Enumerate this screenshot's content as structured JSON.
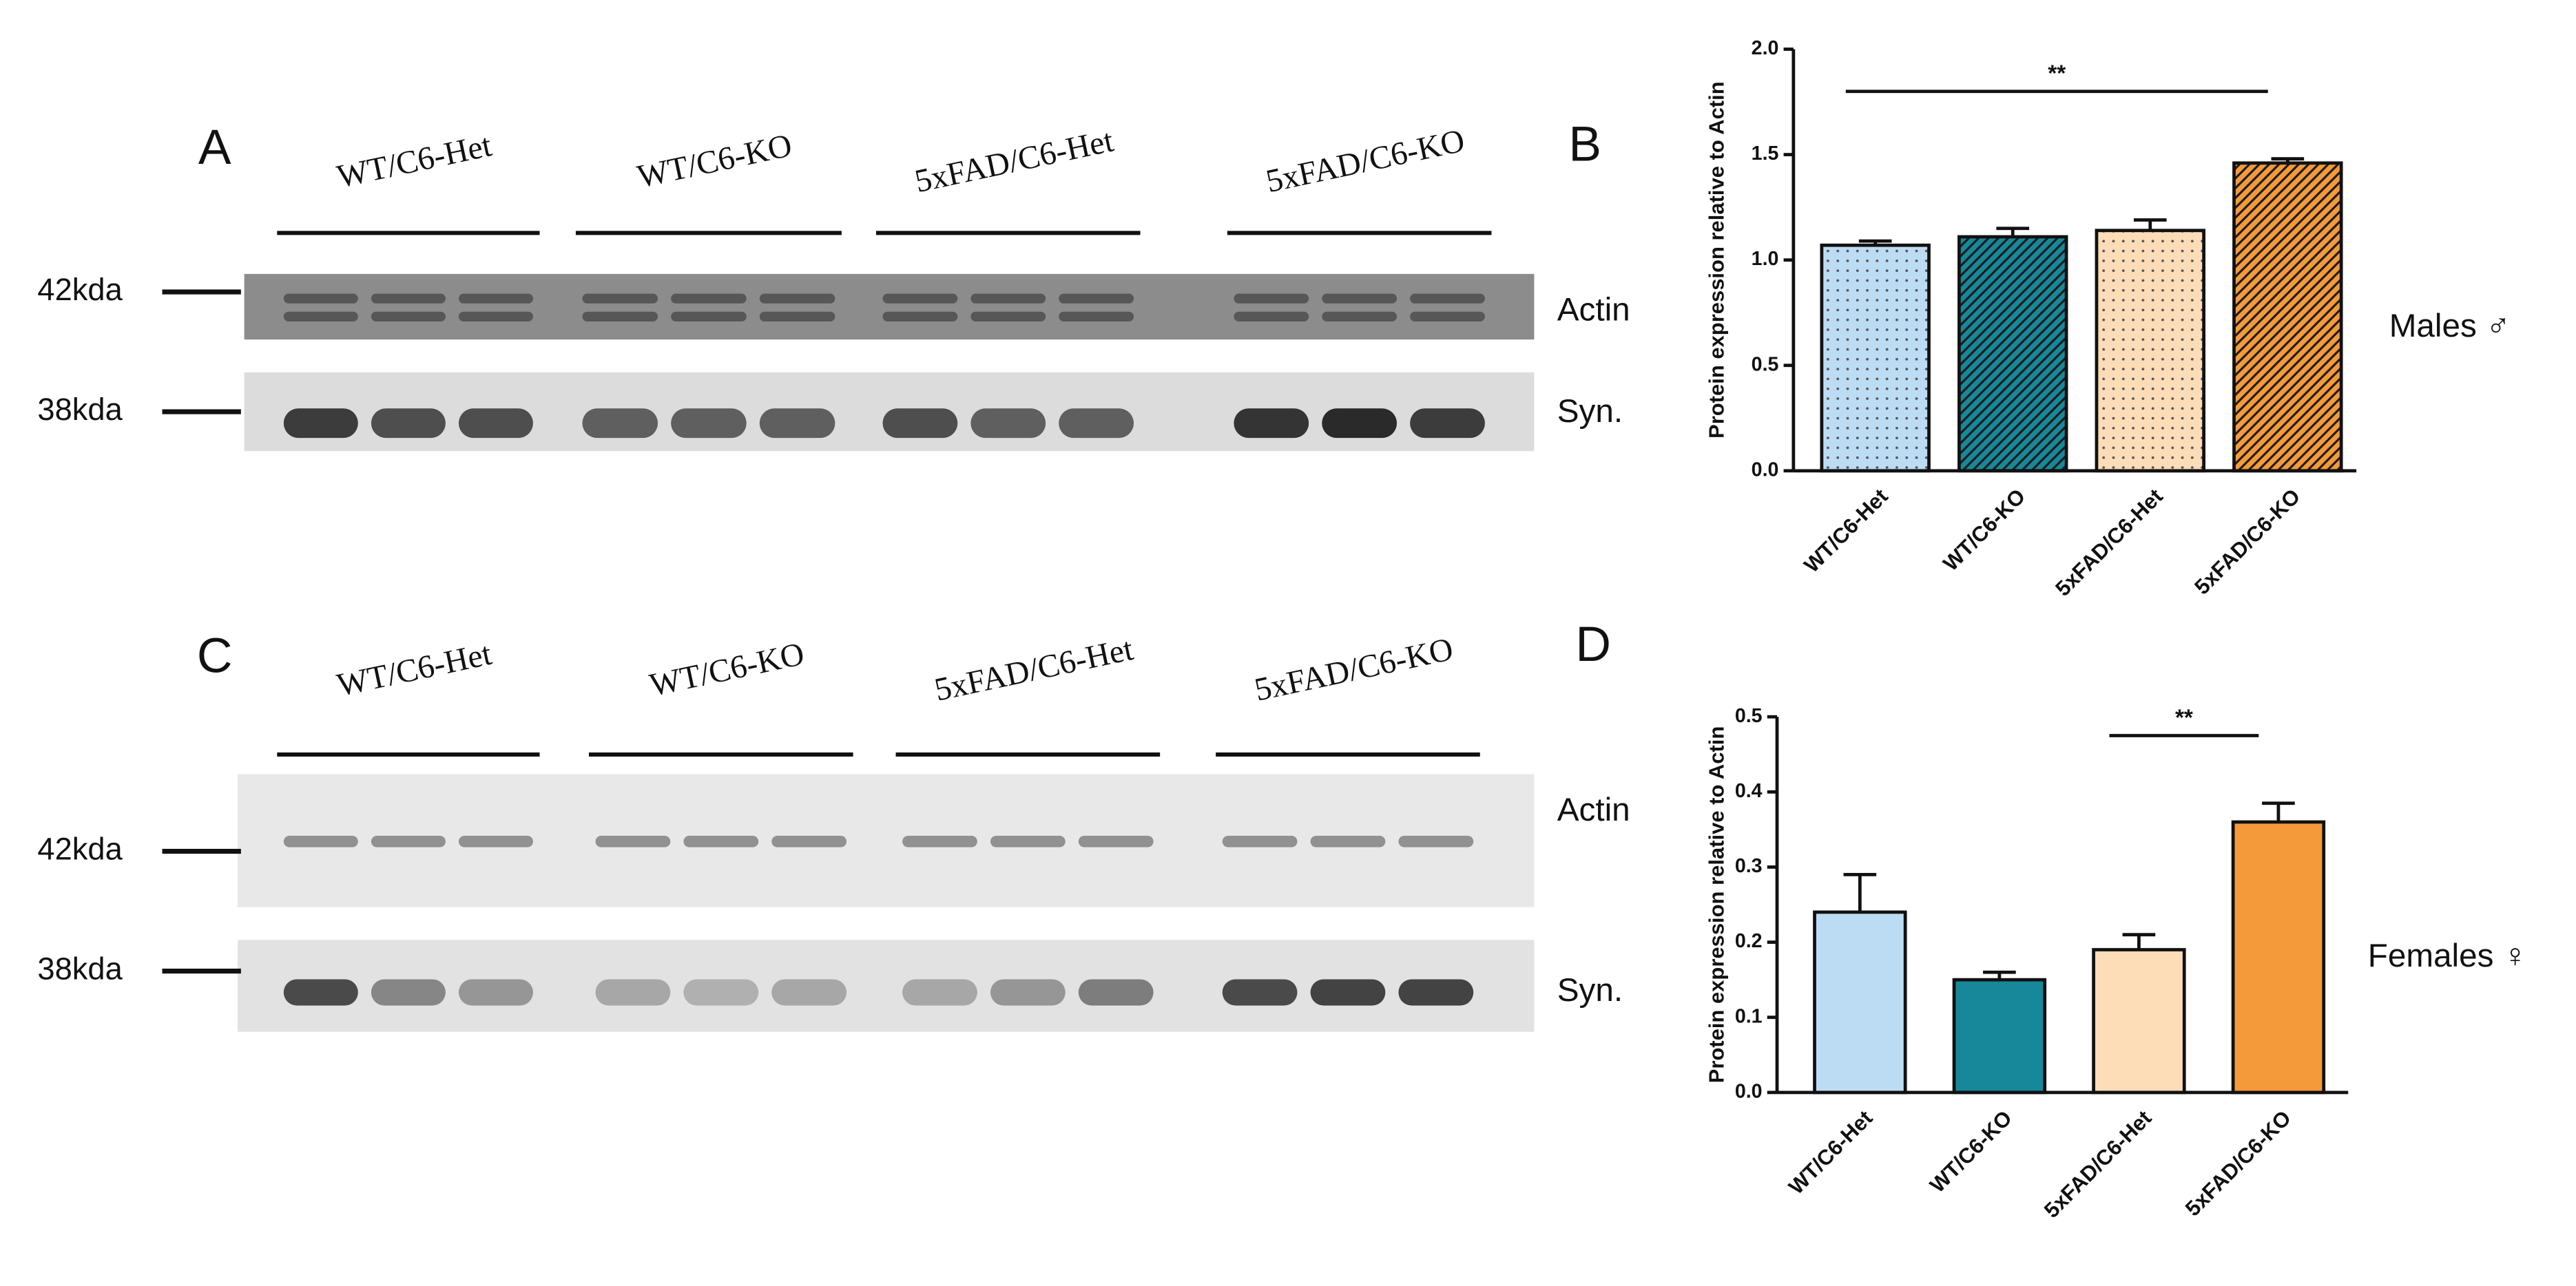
{
  "chart_data": [
    {
      "type": "bar",
      "panel": "B",
      "side_label": "Males ♂",
      "y_label": "Protein expression relative to Actin",
      "categories": [
        "WT/C6-Het",
        "WT/C6-KO",
        "5xFAD/C6-Het",
        "5xFAD/C6-KO"
      ],
      "values": [
        1.07,
        1.11,
        1.14,
        1.46
      ],
      "errors": [
        0.02,
        0.04,
        0.05,
        0.02
      ],
      "colors": [
        "#bcdcf4",
        "#17889a",
        "#fddcb8",
        "#f49a3a"
      ],
      "patterns": [
        "dots",
        "hatch",
        "dots",
        "hatch"
      ],
      "ylim": [
        0,
        2
      ],
      "yticks": [
        {
          "value": 0,
          "label": "0.0"
        },
        0.5,
        {
          "value": 1,
          "label": "1.0"
        },
        1.5,
        {
          "value": 2,
          "label": "2.0"
        }
      ],
      "significance": [
        {
          "label": "**",
          "from": 0,
          "to": 3,
          "y": 1.8
        }
      ]
    },
    {
      "type": "bar",
      "panel": "D",
      "side_label": "Females ♀",
      "y_label": "Protein expression relative to Actin",
      "categories": [
        "WT/C6-Het",
        "WT/C6-KO",
        "5xFAD/C6-Het",
        "5xFAD/C6-KO"
      ],
      "values": [
        0.24,
        0.15,
        0.19,
        0.36
      ],
      "errors": [
        0.05,
        0.01,
        0.02,
        0.025
      ],
      "colors": [
        "#bcdcf4",
        "#17889a",
        "#fddcb8",
        "#f49a3a"
      ],
      "patterns": [
        "solid",
        "solid",
        "solid",
        "solid"
      ],
      "ylim": [
        0,
        0.5
      ],
      "yticks": [
        {
          "value": 0,
          "label": "0.0"
        },
        0.1,
        0.2,
        0.3,
        0.4,
        0.5
      ],
      "significance": [
        {
          "label": "**",
          "from": 2,
          "to": 3,
          "y": 0.475
        }
      ]
    }
  ],
  "blots": [
    {
      "panel": "A",
      "groups": [
        "WT/C6-Het",
        "WT/C6-KO",
        "5xFAD/C6-Het",
        "5xFAD/C6-KO"
      ],
      "markers": [
        "42kda",
        "38kda"
      ],
      "bands": [
        "Actin",
        "Syn."
      ]
    },
    {
      "panel": "C",
      "groups": [
        "WT/C6-Het",
        "WT/C6-KO",
        "5xFAD/C6-Het",
        "5xFAD/C6-KO"
      ],
      "markers": [
        "42kda",
        "38kda"
      ],
      "bands": [
        "Actin",
        "Syn."
      ]
    }
  ]
}
